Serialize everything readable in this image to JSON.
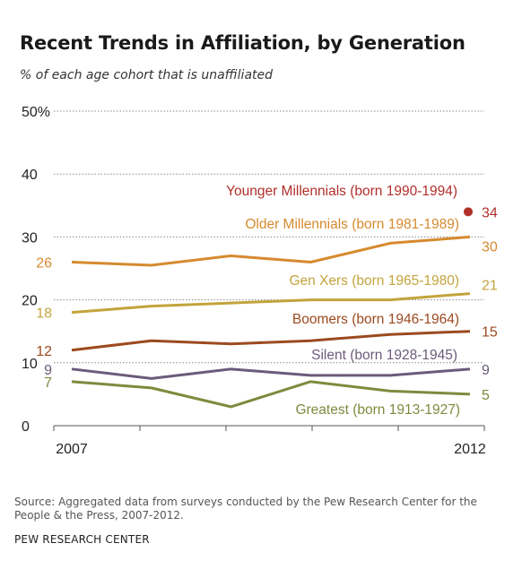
{
  "title": "Recent Trends in Affiliation, by Generation",
  "subtitle": "% of each age cohort that is unaffiliated",
  "source": "Source: Aggregated data from surveys conducted by the Pew Research Center for the People & the Press, 2007-2012.",
  "organization": "PEW RESEARCH CENTER",
  "chart_data": {
    "type": "line",
    "x": [
      2007,
      2008,
      2009,
      2010,
      2011,
      2012
    ],
    "x_tick_labels": [
      {
        "x": 2007,
        "label": "2007"
      },
      {
        "x": 2012,
        "label": "2012"
      }
    ],
    "ylim": [
      0,
      50
    ],
    "y_ticks": [
      0,
      10,
      20,
      30,
      40,
      50
    ],
    "y_tick_labels": [
      "0",
      "10",
      "20",
      "30",
      "40",
      "50"
    ],
    "y_unit_label": "%",
    "grid": "dotted horizontal",
    "series": [
      {
        "name": "Younger Millennials (born 1990-1994)",
        "color": "#b22f2a",
        "values": [
          null,
          null,
          null,
          null,
          null,
          34
        ],
        "start_label": "",
        "end_label": "34"
      },
      {
        "name": "Older Millennials (born 1981-1989)",
        "color": "#d68a2e",
        "values": [
          26,
          25.5,
          27,
          26,
          29,
          30
        ],
        "start_label": "26",
        "end_label": "30"
      },
      {
        "name": "Gen Xers (born 1965-1980)",
        "color": "#c3a43b",
        "values": [
          18,
          19,
          19.5,
          20,
          20,
          21
        ],
        "start_label": "18",
        "end_label": "21"
      },
      {
        "name": "Boomers (born 1946-1964)",
        "color": "#9c4a1f",
        "values": [
          12,
          13.5,
          13,
          13.5,
          14.5,
          15
        ],
        "start_label": "12",
        "end_label": "15"
      },
      {
        "name": "Silent (born 1928-1945)",
        "color": "#6b5b7a",
        "values": [
          9,
          7.5,
          9,
          8,
          8,
          9
        ],
        "start_label": "9",
        "end_label": "9"
      },
      {
        "name": "Greatest (born 1913-1927)",
        "color": "#7c8b3e",
        "values": [
          7,
          6,
          3,
          7,
          5.5,
          5
        ],
        "start_label": "7",
        "end_label": "5"
      }
    ]
  }
}
